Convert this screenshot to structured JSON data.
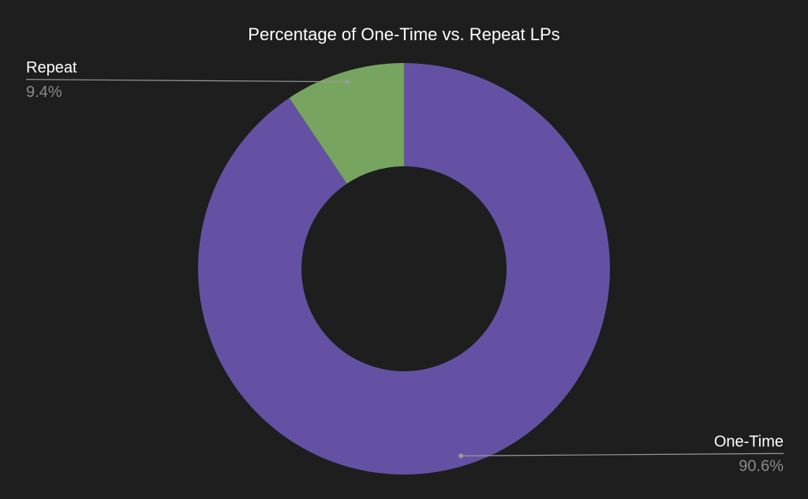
{
  "chart_data": {
    "type": "donut",
    "title": "Percentage of One-Time vs. Repeat LPs",
    "categories": [
      "One-Time",
      "Repeat"
    ],
    "values": [
      90.6,
      9.4
    ],
    "value_labels": [
      "90.6%",
      "9.4%"
    ],
    "colors": [
      "#6451a3",
      "#77a55f"
    ]
  }
}
